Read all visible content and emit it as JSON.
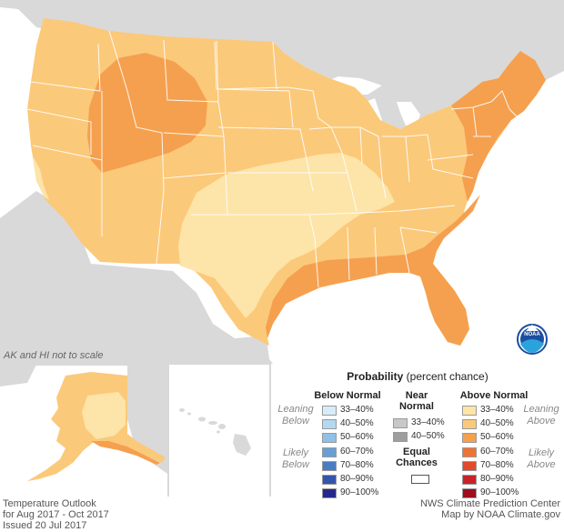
{
  "map": {
    "scale_note": "AK and HI not to scale",
    "logo_text": "NOAA"
  },
  "legend": {
    "title_bold": "Probability",
    "title_rest": " (percent chance)",
    "below_normal": {
      "heading": "Below Normal",
      "leaning_label": "Leaning\nBelow",
      "likely_label": "Likely\nBelow",
      "items": [
        {
          "label": "33–40%",
          "color": "#d7ecf8"
        },
        {
          "label": "40–50%",
          "color": "#b4d8f0"
        },
        {
          "label": "50–60%",
          "color": "#8fc1e6"
        },
        {
          "label": "60–70%",
          "color": "#6a9fd6"
        },
        {
          "label": "70–80%",
          "color": "#4a7cc4"
        },
        {
          "label": "80–90%",
          "color": "#3654ac"
        },
        {
          "label": "90–100%",
          "color": "#25288a"
        }
      ]
    },
    "near_normal": {
      "heading": "Near\nNormal",
      "items": [
        {
          "label": "33–40%",
          "color": "#c8c8c8"
        },
        {
          "label": "40–50%",
          "color": "#9e9e9e"
        }
      ]
    },
    "equal_chances": {
      "label": "Equal\nChances",
      "color": "#ffffff"
    },
    "above_normal": {
      "heading": "Above Normal",
      "leaning_label": "Leaning\nAbove",
      "likely_label": "Likely\nAbove",
      "items": [
        {
          "label": "33–40%",
          "color": "#fde4a8"
        },
        {
          "label": "40–50%",
          "color": "#fbc97a"
        },
        {
          "label": "50–60%",
          "color": "#f5a04f"
        },
        {
          "label": "60–70%",
          "color": "#ef7434"
        },
        {
          "label": "70–80%",
          "color": "#e24a2b"
        },
        {
          "label": "80–90%",
          "color": "#c8232a"
        },
        {
          "label": "90–100%",
          "color": "#9b0f1e"
        }
      ]
    }
  },
  "footer": {
    "line1": "Temperature Outlook",
    "line2": "for Aug 2017 - Oct 2017",
    "line3": "Issued 20 Jul 2017",
    "credit1": "NWS Climate Prediction Center",
    "credit2": "Map by NOAA Climate.gov"
  },
  "colors": {
    "ocean": "#ffffff",
    "land_other": "#d9d9d9",
    "lakes": "#ffffff",
    "state_border": "#ffffff",
    "leaning_above": "#fde4a8",
    "above_40_50": "#fbc97a",
    "above_50_60": "#f5a04f"
  }
}
